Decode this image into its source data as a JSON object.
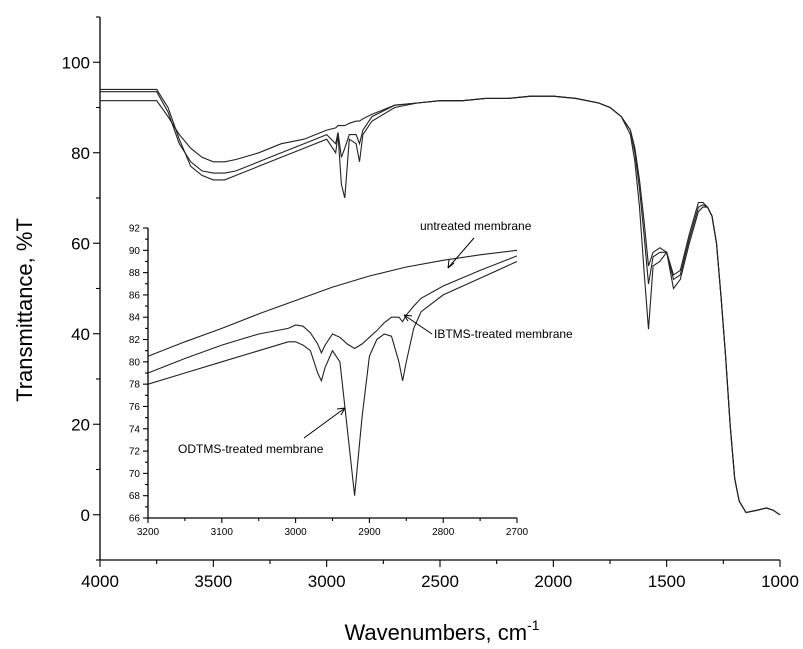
{
  "chart_data": [
    {
      "type": "line",
      "xlabel": "Wavenumbers, cm",
      "xlabel_sup": "-1",
      "ylabel": "Transmittance, %T",
      "xlim": [
        4000,
        1000
      ],
      "ylim": [
        -10,
        110
      ],
      "xticks": [
        4000,
        3500,
        3000,
        2500,
        2000,
        1500,
        1000
      ],
      "yticks": [
        0,
        20,
        40,
        60,
        80,
        100
      ],
      "series": [
        {
          "x": [
            4000,
            3750,
            3700,
            3650,
            3600,
            3550,
            3500,
            3450,
            3400,
            3300,
            3200,
            3100,
            3000,
            2960,
            2950,
            2935,
            2920,
            2900,
            2870,
            2855,
            2840,
            2800,
            2700,
            2600,
            2500,
            2400,
            2300,
            2200,
            2100,
            2000,
            1900,
            1800,
            1750,
            1700,
            1660,
            1640,
            1620,
            1600,
            1580,
            1560,
            1530,
            1500,
            1470,
            1440,
            1400,
            1360,
            1340,
            1320,
            1300,
            1280,
            1260,
            1240,
            1220,
            1200,
            1180,
            1150,
            1100,
            1060,
            1030,
            1000
          ],
          "y": [
            94,
            94,
            90,
            83,
            77,
            75,
            74,
            74,
            75,
            77,
            79,
            81,
            83,
            80,
            84,
            73,
            70,
            83,
            82,
            78,
            84,
            87,
            90,
            91,
            91.5,
            91.5,
            92,
            92,
            92.5,
            92.5,
            92,
            91,
            90,
            88,
            84,
            78,
            68,
            54,
            41,
            55,
            56,
            58,
            50,
            52,
            60,
            67,
            68,
            68,
            66,
            60,
            48,
            35,
            20,
            8,
            3,
            0.5,
            1,
            1.5,
            1,
            0
          ]
        },
        {
          "x": [
            4000,
            3750,
            3700,
            3650,
            3600,
            3550,
            3500,
            3450,
            3400,
            3300,
            3200,
            3100,
            3000,
            2960,
            2950,
            2935,
            2920,
            2900,
            2870,
            2855,
            2840,
            2800,
            2700,
            2600,
            2500,
            2400,
            2300,
            2200,
            2100,
            2000,
            1900,
            1800,
            1750,
            1700,
            1660,
            1640,
            1620,
            1600,
            1580,
            1560,
            1530,
            1500,
            1470,
            1440,
            1400,
            1360,
            1340,
            1320,
            1300,
            1280,
            1260,
            1240,
            1220,
            1200,
            1180,
            1150,
            1100,
            1060,
            1030,
            1000
          ],
          "y": [
            93.5,
            93.5,
            89,
            82,
            78,
            76,
            75.5,
            75.5,
            76,
            78,
            80,
            82,
            84,
            82,
            84.5,
            79,
            81,
            84,
            84,
            82,
            85,
            88,
            90.5,
            91,
            91.5,
            91.5,
            92,
            92,
            92.5,
            92.5,
            92,
            91,
            90,
            88,
            85,
            80,
            72,
            62,
            51,
            57,
            58,
            58,
            52,
            53,
            61,
            68,
            68.5,
            68,
            66,
            60,
            48,
            35,
            20,
            8,
            3,
            0.5,
            1,
            1.5,
            1,
            0
          ]
        },
        {
          "x": [
            4000,
            3750,
            3700,
            3650,
            3600,
            3550,
            3500,
            3450,
            3400,
            3300,
            3200,
            3100,
            3000,
            2960,
            2950,
            2935,
            2920,
            2900,
            2870,
            2855,
            2840,
            2800,
            2700,
            2600,
            2500,
            2400,
            2300,
            2200,
            2100,
            2000,
            1900,
            1800,
            1750,
            1700,
            1660,
            1640,
            1620,
            1600,
            1580,
            1560,
            1530,
            1500,
            1470,
            1440,
            1400,
            1360,
            1340,
            1320,
            1300,
            1280,
            1260,
            1240,
            1220,
            1200,
            1180,
            1150,
            1100,
            1060,
            1030,
            1000
          ],
          "y": [
            91.5,
            91.5,
            88,
            84,
            81,
            79,
            78,
            78,
            78.5,
            80,
            82,
            83,
            85,
            85.5,
            86,
            86,
            86,
            86.5,
            87,
            87,
            87.5,
            88.5,
            90.5,
            91,
            91.5,
            91.5,
            92,
            92,
            92.5,
            92.5,
            92,
            91,
            90,
            88,
            85,
            81,
            74,
            65,
            55,
            58,
            59,
            58,
            53,
            54,
            62,
            69,
            69,
            68,
            66,
            60,
            48,
            35,
            20,
            8,
            3,
            0.5,
            1,
            1.5,
            1,
            0
          ]
        }
      ]
    },
    {
      "type": "line",
      "xlim": [
        3200,
        2700
      ],
      "ylim": [
        66,
        92
      ],
      "xticks": [
        3200,
        3100,
        3000,
        2900,
        2800,
        2700
      ],
      "yticks": [
        66,
        68,
        70,
        72,
        74,
        76,
        78,
        80,
        82,
        84,
        86,
        88,
        90,
        92
      ],
      "annotations": [
        "untreated membrane",
        "IBTMS-treated membrane",
        "ODTMS-treated membrane"
      ],
      "series": [
        {
          "x": [
            3200,
            3150,
            3100,
            3050,
            3010,
            3000,
            2990,
            2980,
            2970,
            2965,
            2960,
            2950,
            2940,
            2930,
            2920,
            2910,
            2900,
            2890,
            2880,
            2870,
            2860,
            2855,
            2850,
            2840,
            2830,
            2800,
            2750,
            2700
          ],
          "y": [
            78,
            79,
            80,
            81,
            81.8,
            81.8,
            81.5,
            81,
            79,
            78.3,
            79.5,
            81,
            80,
            74,
            68,
            75,
            80.5,
            82,
            82.5,
            82.3,
            80,
            78.3,
            80,
            83,
            84.5,
            86,
            87.5,
            89
          ]
        },
        {
          "x": [
            3200,
            3150,
            3100,
            3050,
            3010,
            3000,
            2990,
            2980,
            2970,
            2965,
            2960,
            2950,
            2940,
            2930,
            2920,
            2910,
            2900,
            2890,
            2880,
            2870,
            2860,
            2855,
            2850,
            2840,
            2830,
            2800,
            2750,
            2700
          ],
          "y": [
            79,
            80.3,
            81.5,
            82.5,
            83,
            83.3,
            83.2,
            82.6,
            81.6,
            80.8,
            81.5,
            82.5,
            82.2,
            81.6,
            81.2,
            81.6,
            82.2,
            82.8,
            83.5,
            84,
            84,
            83.6,
            84.2,
            85,
            85.7,
            86.8,
            88.2,
            89.5
          ]
        },
        {
          "x": [
            3200,
            3150,
            3100,
            3050,
            3000,
            2950,
            2900,
            2850,
            2800,
            2750,
            2700
          ],
          "y": [
            80.5,
            81.8,
            83,
            84.3,
            85.5,
            86.7,
            87.7,
            88.5,
            89.1,
            89.6,
            90
          ]
        }
      ]
    }
  ]
}
